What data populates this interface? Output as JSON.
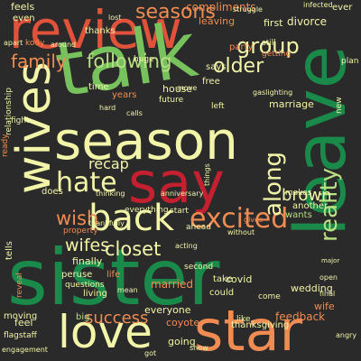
{
  "palette": {
    "background": "#2a2a2a",
    "dark_green": "#1a8a4a",
    "green": "#78c25e",
    "light_green": "#b8df82",
    "pale_yellow": "#f2f5a8",
    "orange": "#f08c52",
    "red_orange": "#e0533a",
    "red": "#c42030"
  },
  "words": [
    {
      "text": "review",
      "color": "red_orange"
    },
    {
      "text": "talk",
      "color": "green"
    },
    {
      "text": "leave",
      "color": "dark_green"
    },
    {
      "text": "season",
      "color": "pale_yellow"
    },
    {
      "text": "say",
      "color": "red"
    },
    {
      "text": "wives",
      "color": "pale_yellow"
    },
    {
      "text": "back",
      "color": "pale_yellow"
    },
    {
      "text": "sister",
      "color": "dark_green"
    },
    {
      "text": "love",
      "color": "pale_yellow"
    },
    {
      "text": "star",
      "color": "orange"
    },
    {
      "text": "hate",
      "color": "pale_yellow"
    },
    {
      "text": "excited",
      "color": "orange"
    },
    {
      "text": "reality",
      "color": "light_green"
    },
    {
      "text": "along",
      "color": "pale_yellow"
    },
    {
      "text": "following",
      "color": "light_green"
    },
    {
      "text": "group",
      "color": "pale_yellow"
    },
    {
      "text": "older",
      "color": "pale_yellow"
    },
    {
      "text": "seasons",
      "color": "orange"
    },
    {
      "text": "family",
      "color": "orange"
    },
    {
      "text": "closet",
      "color": "pale_yellow"
    },
    {
      "text": "wish",
      "color": "orange"
    },
    {
      "text": "wifes",
      "color": "pale_yellow"
    },
    {
      "text": "recap",
      "color": "pale_yellow"
    },
    {
      "text": "brown",
      "color": "pale_yellow"
    },
    {
      "text": "success",
      "color": "orange"
    },
    {
      "text": "feels",
      "color": "pale_yellow"
    },
    {
      "text": "compliments",
      "color": "orange"
    },
    {
      "text": "divorce",
      "color": "pale_yellow"
    },
    {
      "text": "leaving",
      "color": "orange"
    },
    {
      "text": "first",
      "color": "pale_yellow"
    },
    {
      "text": "party",
      "color": "orange"
    },
    {
      "text": "says",
      "color": "pale_yellow"
    },
    {
      "text": "free",
      "color": "pale_yellow"
    },
    {
      "text": "house",
      "color": "pale_yellow"
    },
    {
      "text": "marriage",
      "color": "pale_yellow"
    },
    {
      "text": "married",
      "color": "orange"
    },
    {
      "text": "everyone",
      "color": "pale_yellow"
    },
    {
      "text": "covid",
      "color": "pale_yellow"
    },
    {
      "text": "wedding",
      "color": "pale_yellow"
    },
    {
      "text": "feedback",
      "color": "orange"
    },
    {
      "text": "wife",
      "color": "orange"
    },
    {
      "text": "going",
      "color": "pale_yellow"
    },
    {
      "text": "coyote",
      "color": "orange"
    },
    {
      "text": "feel",
      "color": "pale_yellow"
    },
    {
      "text": "peruse",
      "color": "pale_yellow"
    },
    {
      "text": "finally",
      "color": "pale_yellow"
    },
    {
      "text": "wants",
      "color": "light_green"
    },
    {
      "text": "another",
      "color": "pale_yellow"
    },
    {
      "text": "makes",
      "color": "pale_yellow"
    },
    {
      "text": "could",
      "color": "pale_yellow"
    },
    {
      "text": "take",
      "color": "pale_yellow"
    },
    {
      "text": "life",
      "color": "orange"
    },
    {
      "text": "big",
      "color": "light_green"
    },
    {
      "text": "living",
      "color": "pale_yellow"
    },
    {
      "text": "moving",
      "color": "pale_yellow"
    },
    {
      "text": "tells",
      "color": "pale_yellow"
    },
    {
      "text": "does",
      "color": "pale_yellow"
    },
    {
      "text": "thanksgiving",
      "color": "pale_yellow"
    },
    {
      "text": "thanks",
      "color": "pale_yellow"
    },
    {
      "text": "even",
      "color": "pale_yellow"
    },
    {
      "text": "ever",
      "color": "pale_yellow"
    },
    {
      "text": "years",
      "color": "orange"
    },
    {
      "text": "time",
      "color": "pale_yellow"
    },
    {
      "text": "huge",
      "color": "pale_yellow"
    },
    {
      "text": "future",
      "color": "pale_yellow"
    },
    {
      "text": "ahead",
      "color": "pale_yellow"
    },
    {
      "text": "start",
      "color": "pale_yellow"
    },
    {
      "text": "everything",
      "color": "pale_yellow"
    },
    {
      "text": "come",
      "color": "pale_yellow"
    },
    {
      "text": "second",
      "color": "pale_yellow"
    },
    {
      "text": "questions",
      "color": "pale_yellow"
    },
    {
      "text": "flagstaff",
      "color": "pale_yellow"
    },
    {
      "text": "reveal",
      "color": "orange"
    },
    {
      "text": "relationship",
      "color": "pale_yellow"
    },
    {
      "text": "left",
      "color": "pale_yellow"
    },
    {
      "text": "new",
      "color": "pale_yellow"
    },
    {
      "text": "getting",
      "color": "orange"
    },
    {
      "text": "still",
      "color": "pale_yellow"
    },
    {
      "text": "plan",
      "color": "pale_yellow"
    },
    {
      "text": "ready",
      "color": "orange"
    },
    {
      "text": "anniversary",
      "color": "pale_yellow"
    },
    {
      "text": "gaslighting",
      "color": "pale_yellow"
    },
    {
      "text": "infected",
      "color": "pale_yellow"
    },
    {
      "text": "struggle",
      "color": "pale_yellow"
    },
    {
      "text": "thinking",
      "color": "pale_yellow"
    },
    {
      "text": "acting",
      "color": "pale_yellow"
    },
    {
      "text": "gives",
      "color": "orange"
    },
    {
      "text": "without",
      "color": "pale_yellow"
    },
    {
      "text": "show",
      "color": "pale_yellow"
    },
    {
      "text": "like",
      "color": "pale_yellow"
    },
    {
      "text": "fight",
      "color": "pale_yellow"
    },
    {
      "text": "calls",
      "color": "pale_yellow"
    },
    {
      "text": "mean",
      "color": "pale_yellow"
    },
    {
      "text": "kody",
      "color": "orange"
    },
    {
      "text": "hard",
      "color": "pale_yellow"
    },
    {
      "text": "move",
      "color": "pale_yellow"
    },
    {
      "text": "apart",
      "color": "pale_yellow"
    },
    {
      "text": "around",
      "color": "pale_yellow"
    },
    {
      "text": "lost",
      "color": "pale_yellow"
    },
    {
      "text": "property",
      "color": "orange"
    },
    {
      "text": "things",
      "color": "pale_yellow"
    },
    {
      "text": "thankfully",
      "color": "pale_yellow"
    },
    {
      "text": "got",
      "color": "pale_yellow"
    },
    {
      "text": "angry",
      "color": "pale_yellow"
    },
    {
      "text": "open",
      "color": "pale_yellow"
    },
    {
      "text": "final",
      "color": "pale_yellow"
    },
    {
      "text": "major",
      "color": "pale_yellow"
    },
    {
      "text": "engagement",
      "color": "pale_yellow"
    }
  ]
}
